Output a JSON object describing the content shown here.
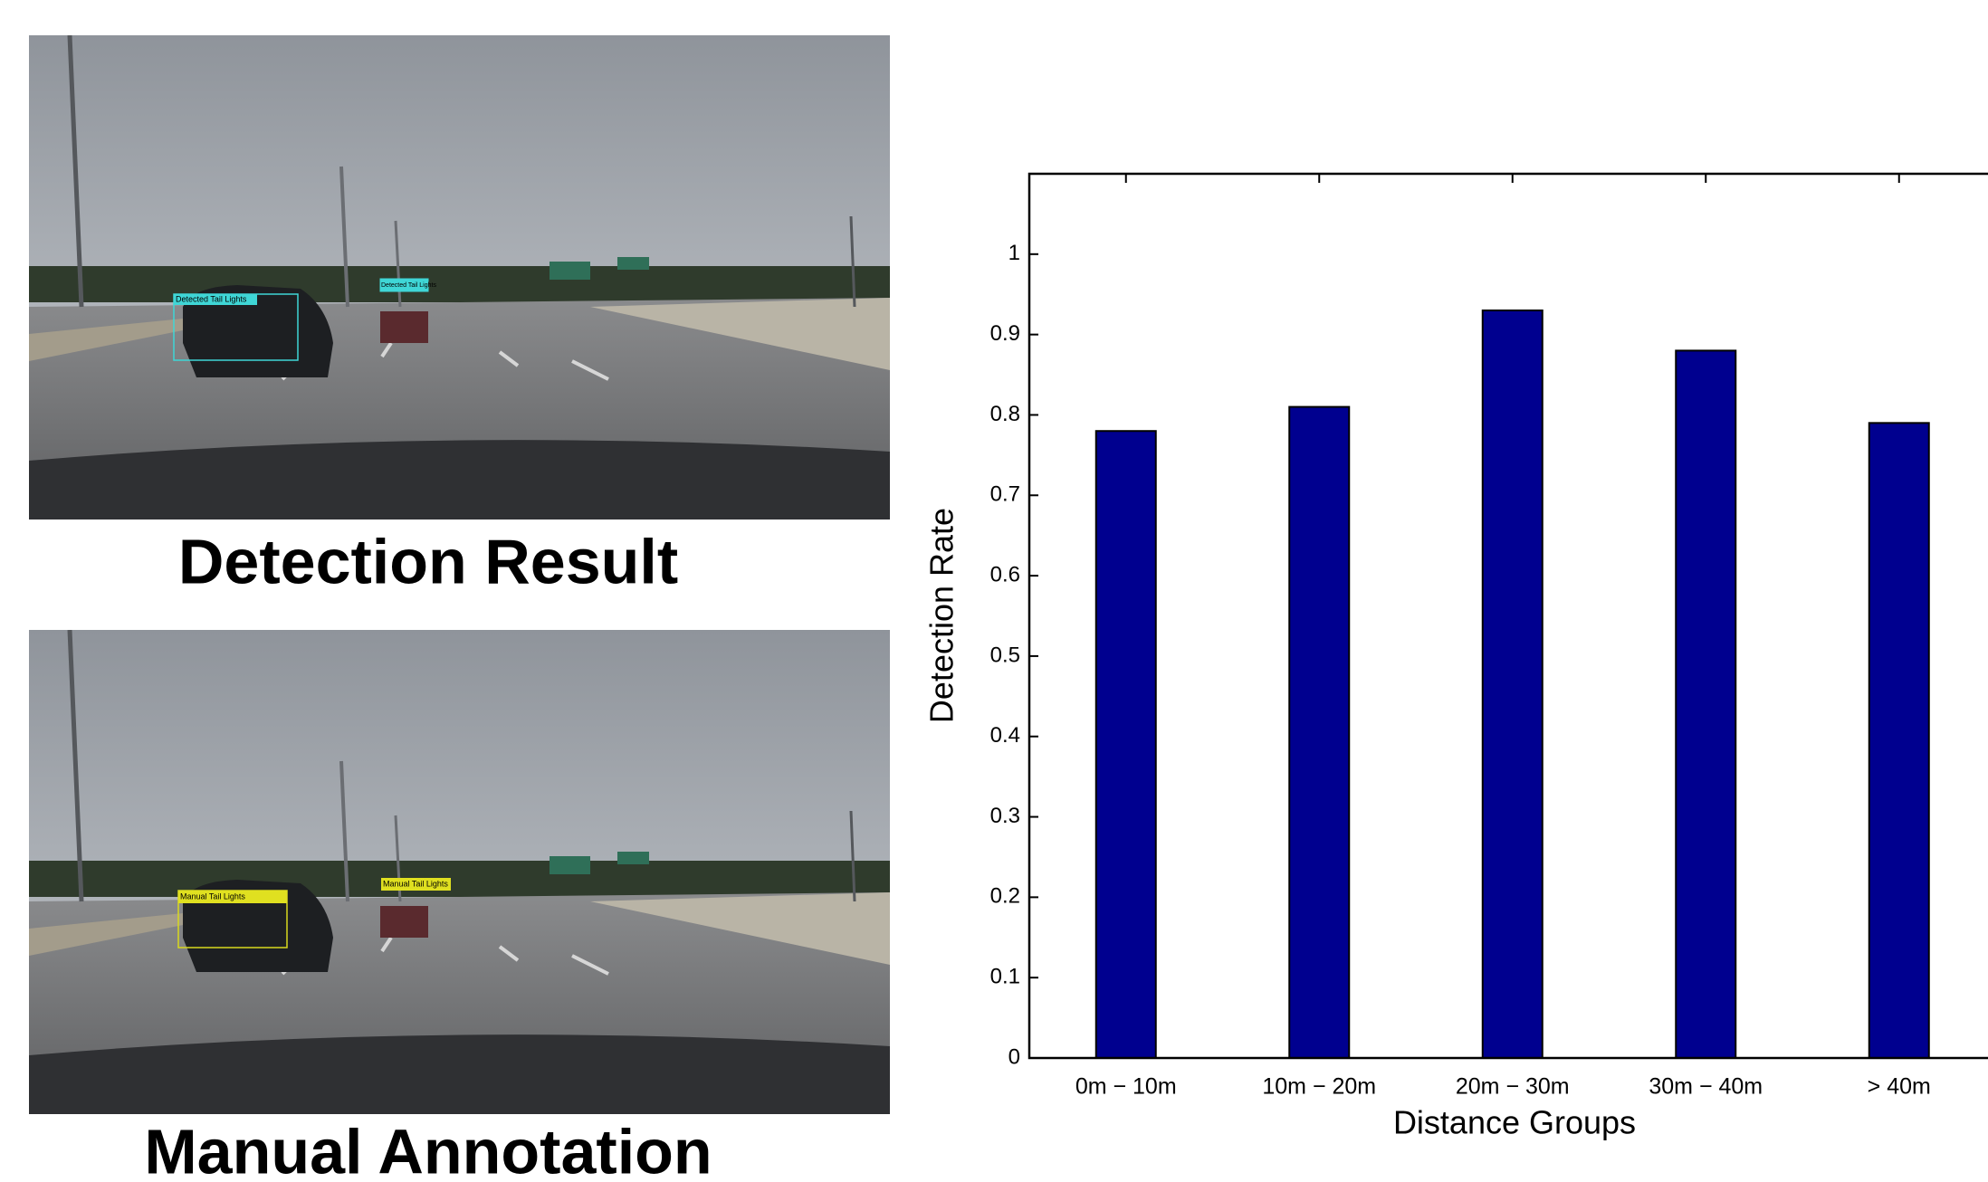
{
  "images": [
    {
      "caption": "Detection Result",
      "box_labels": [
        "Detected Tail Lights",
        "Detected Tail Lights"
      ]
    },
    {
      "caption": "Manual Annotation",
      "box_labels": [
        "Manual Tail Lights",
        "Manual Tail Lights"
      ]
    }
  ],
  "chart_data": {
    "type": "bar",
    "x_label": "Distance Groups",
    "y_label": "Detection Rate",
    "categories": [
      "0m − 10m",
      "10m − 20m",
      "20m − 30m",
      "30m − 40m",
      "> 40m"
    ],
    "values": [
      0.78,
      0.81,
      0.93,
      0.88,
      0.79
    ],
    "color": "#00008f",
    "ylim": [
      0,
      1.1
    ],
    "yticks": [
      0,
      0.1,
      0.2,
      0.3,
      0.4,
      0.5,
      0.6,
      0.7,
      0.8,
      0.9,
      1
    ],
    "grid": false
  }
}
